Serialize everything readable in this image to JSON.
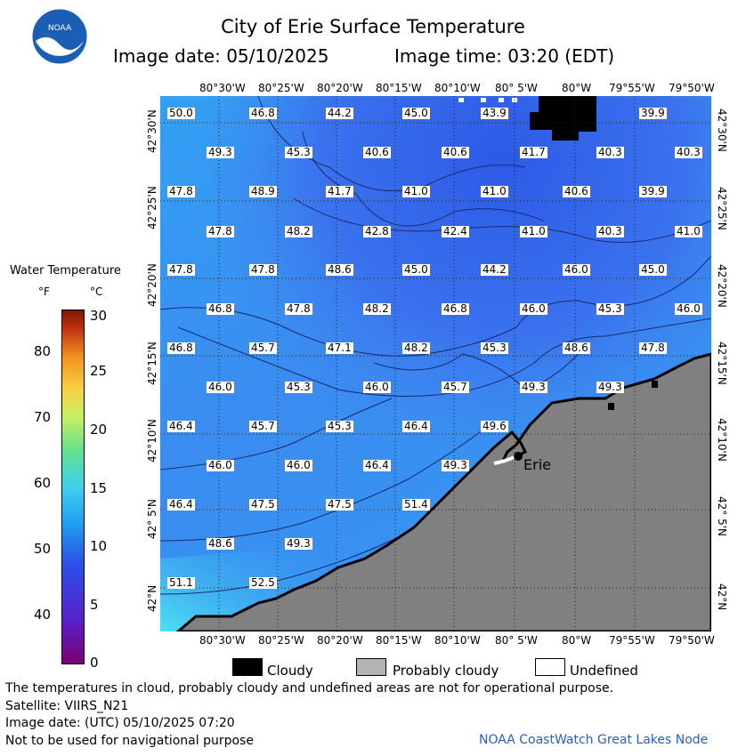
{
  "header": {
    "title": "City of Erie Surface Temperature",
    "image_date": "Image date: 05/10/2025",
    "image_time": "Image time: 03:20 (EDT)",
    "logo_text": "NOAA"
  },
  "map": {
    "lon_labels": [
      "80°30'W",
      "80°25'W",
      "80°20'W",
      "80°15'W",
      "80°10'W",
      "80° 5'W",
      "80°W",
      "79°55'W",
      "79°50'W"
    ],
    "lat_labels": [
      "42°30'N",
      "42°25'N",
      "42°20'N",
      "42°15'N",
      "42°10'N",
      "42° 5'N",
      "42°N"
    ],
    "city_label": "Erie",
    "temperatures": [
      [
        "50.0",
        "46.8",
        "44.2",
        "45.0",
        "43.9",
        "",
        "39.9"
      ],
      [
        "49.3",
        "45.3",
        "40.6",
        "40.6",
        "41.7",
        "40.3",
        "40.3"
      ],
      [
        "47.8",
        "48.9",
        "41.7",
        "41.0",
        "41.0",
        "40.6",
        "39.9"
      ],
      [
        "47.8",
        "48.2",
        "42.8",
        "42.4",
        "41.0",
        "40.3",
        "41.0"
      ],
      [
        "47.8",
        "47.8",
        "48.6",
        "45.0",
        "44.2",
        "46.0",
        "45.0"
      ],
      [
        "46.8",
        "47.8",
        "48.2",
        "46.8",
        "46.0",
        "45.3",
        "46.0"
      ],
      [
        "46.8",
        "45.7",
        "47.1",
        "48.2",
        "45.3",
        "48.6",
        "47.8"
      ],
      [
        "46.0",
        "45.3",
        "46.0",
        "45.7",
        "49.3",
        "49.3"
      ],
      [
        "46.4",
        "45.7",
        "45.3",
        "46.4",
        "49.6"
      ],
      [
        "46.0",
        "46.0",
        "46.4",
        "49.3"
      ],
      [
        "46.4",
        "47.5",
        "47.5",
        "51.4"
      ],
      [
        "48.6",
        "49.3"
      ],
      [
        "51.1",
        "52.5"
      ]
    ]
  },
  "colorbar": {
    "title": "Water Temperature",
    "unit_f": "°F",
    "unit_c": "°C",
    "f_ticks": [
      "80",
      "70",
      "60",
      "50",
      "40"
    ],
    "c_ticks": [
      "30",
      "25",
      "20",
      "15",
      "10",
      "5",
      "0"
    ]
  },
  "legend": {
    "cloudy": "Cloudy",
    "probably_cloudy": "Probably cloudy",
    "undefined": "Undefined",
    "colors": {
      "cloudy": "#000000",
      "probably_cloudy": "#b4b4b4",
      "undefined": "#ffffff",
      "land": "#808080"
    }
  },
  "footer": {
    "disclaimer": "The temperatures in cloud, probably cloudy and undefined areas are not for operational purpose.",
    "satellite": "Satellite: VIIRS_N21",
    "utc_date": "Image date: (UTC) 05/10/2025  07:20",
    "nav_note": "Not to be used for navigational purpose",
    "node": "NOAA CoastWatch Great Lakes Node"
  }
}
